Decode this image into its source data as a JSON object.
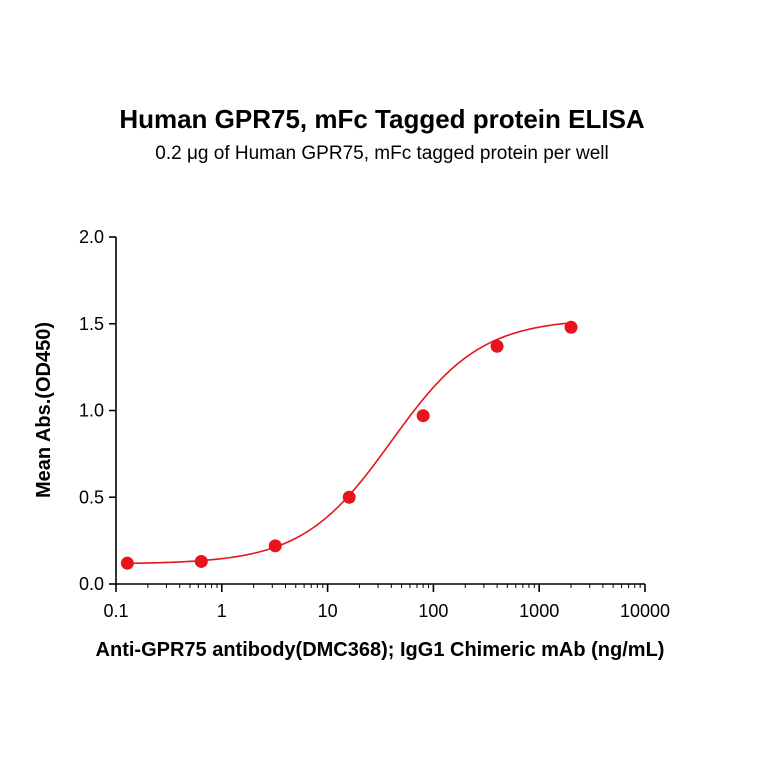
{
  "chart_data": {
    "type": "scatter",
    "title": "Human GPR75, mFc Tagged protein ELISA",
    "subtitle": "0.2 μg of Human GPR75, mFc tagged protein per well",
    "xlabel": "Anti-GPR75 antibody(DMC368); IgG1 Chimeric mAb (ng/mL)",
    "ylabel": "Mean Abs.(OD450)",
    "x_scale": "log",
    "xlim": [
      0.1,
      10000
    ],
    "ylim": [
      0.0,
      2.0
    ],
    "x_ticks": [
      0.1,
      1,
      10,
      100,
      1000,
      10000
    ],
    "x_tick_labels": [
      "0.1",
      "1",
      "10",
      "100",
      "1000",
      "10000"
    ],
    "y_ticks": [
      0.0,
      0.5,
      1.0,
      1.5,
      2.0
    ],
    "y_tick_labels": [
      "0.0",
      "0.5",
      "1.0",
      "1.5",
      "2.0"
    ],
    "grid": false,
    "series": [
      {
        "x": [
          0.128,
          0.64,
          3.2,
          16,
          80,
          400,
          2000
        ],
        "y": [
          0.12,
          0.13,
          0.22,
          0.5,
          0.97,
          1.37,
          1.48
        ],
        "color": "#e8141c",
        "fit": "4PL sigmoidal curve"
      }
    ]
  }
}
